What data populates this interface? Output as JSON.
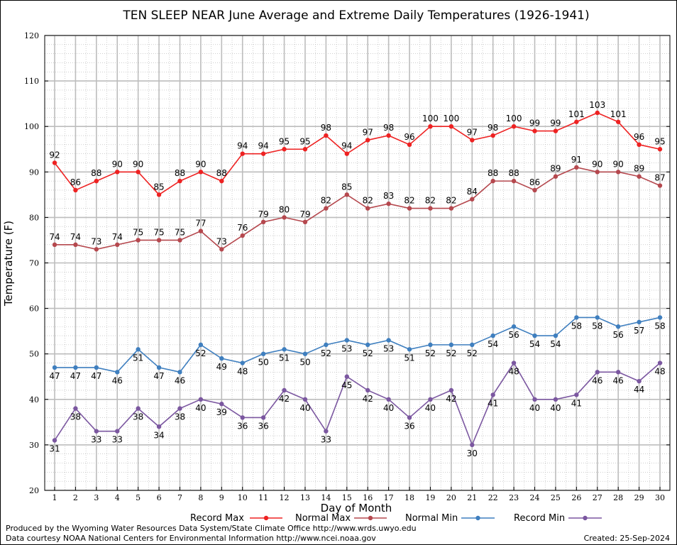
{
  "chart_data": {
    "type": "line",
    "title": "TEN SLEEP NEAR June Average and Extreme Daily Temperatures (1926-1941)",
    "xlabel": "Day of Month",
    "ylabel": "Temperature (F)",
    "xlim": [
      1,
      30
    ],
    "ylim": [
      20,
      120
    ],
    "y_ticks": [
      20,
      30,
      40,
      50,
      60,
      70,
      80,
      90,
      100,
      110,
      120
    ],
    "grid": true,
    "legend_position": "bottom",
    "x": [
      1,
      2,
      3,
      4,
      5,
      6,
      7,
      8,
      9,
      10,
      11,
      12,
      13,
      14,
      15,
      16,
      17,
      18,
      19,
      20,
      21,
      22,
      23,
      24,
      25,
      26,
      27,
      28,
      29,
      30
    ],
    "series": [
      {
        "name": "Record Max",
        "color": "#ee2222",
        "label_position": "above",
        "values": [
          92,
          86,
          88,
          90,
          90,
          85,
          88,
          90,
          88,
          94,
          94,
          95,
          95,
          98,
          94,
          97,
          98,
          96,
          100,
          100,
          97,
          98,
          100,
          99,
          99,
          101,
          103,
          101,
          96,
          95
        ]
      },
      {
        "name": "Normal Max",
        "color": "#b5484e",
        "label_position": "above",
        "values": [
          74,
          74,
          73,
          74,
          75,
          75,
          75,
          77,
          73,
          76,
          79,
          80,
          79,
          82,
          85,
          82,
          83,
          82,
          82,
          82,
          84,
          88,
          88,
          86,
          89,
          91,
          90,
          90,
          89,
          87
        ]
      },
      {
        "name": "Normal Min",
        "color": "#3f7fbf",
        "label_position": "below",
        "values": [
          47,
          47,
          47,
          46,
          51,
          47,
          46,
          52,
          49,
          48,
          50,
          51,
          50,
          52,
          53,
          52,
          53,
          51,
          52,
          52,
          52,
          54,
          56,
          54,
          54,
          58,
          58,
          56,
          57,
          58
        ]
      },
      {
        "name": "Record Min",
        "color": "#7b57a0",
        "label_position": "below",
        "values": [
          31,
          38,
          33,
          33,
          38,
          34,
          38,
          40,
          39,
          36,
          36,
          42,
          40,
          33,
          45,
          42,
          40,
          36,
          40,
          42,
          30,
          41,
          48,
          40,
          40,
          41,
          46,
          46,
          44,
          48
        ]
      }
    ]
  },
  "footer": {
    "produced_by": "Produced by the Wyoming Water Resources Data System/State Climate Office http://www.wrds.uwyo.edu",
    "data_courtesy": "Data courtesy NOAA National Centers for Environmental Information http://www.ncei.noaa.gov",
    "created": "Created:  25-Sep-2024"
  }
}
